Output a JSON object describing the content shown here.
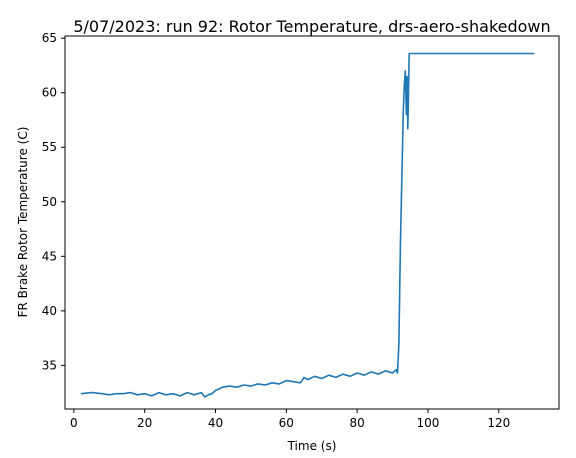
{
  "chart_data": {
    "type": "line",
    "title": "5/07/2023: run 92: Rotor Temperature, drs-aero-shakedown",
    "xlabel": "Time (s)",
    "ylabel": "FR Brake Rotor Temperature (C)",
    "xlim": [
      -2.5,
      137
    ],
    "ylim": [
      31,
      65.2
    ],
    "xticks": [
      "0",
      "20",
      "40",
      "60",
      "80",
      "100",
      "120"
    ],
    "yticks": [
      "35",
      "40",
      "45",
      "50",
      "55",
      "60",
      "65"
    ],
    "grid": false,
    "legend": "none",
    "line_color": "#1f77b4",
    "series": [
      {
        "x": [
          2,
          5,
          8,
          10,
          12,
          14,
          16,
          18,
          20,
          22,
          24,
          26,
          28,
          30,
          32,
          34,
          36,
          37,
          38,
          39,
          40,
          42,
          44,
          46,
          48,
          50,
          52,
          54,
          56,
          58,
          60,
          62,
          64,
          65,
          66,
          68,
          70,
          72,
          74,
          76,
          78,
          80,
          82,
          84,
          86,
          88,
          90,
          91,
          91.4,
          91.8,
          92.2,
          92.6,
          93,
          93.3,
          93.6,
          93.9,
          94.1,
          94.3,
          94.5,
          94.7,
          95,
          100,
          110,
          120,
          130
        ],
        "y": [
          32.4,
          32.5,
          32.4,
          32.3,
          32.4,
          32.4,
          32.5,
          32.3,
          32.4,
          32.2,
          32.5,
          32.3,
          32.4,
          32.2,
          32.5,
          32.3,
          32.5,
          32.1,
          32.3,
          32.4,
          32.7,
          33.0,
          33.1,
          33.0,
          33.2,
          33.1,
          33.3,
          33.2,
          33.4,
          33.3,
          33.6,
          33.5,
          33.4,
          33.9,
          33.7,
          34.0,
          33.8,
          34.1,
          33.9,
          34.2,
          34.0,
          34.3,
          34.1,
          34.4,
          34.2,
          34.5,
          34.3,
          34.6,
          34.3,
          37.0,
          46.0,
          52.0,
          58.0,
          60.5,
          62.0,
          58.0,
          61.5,
          56.7,
          60.0,
          63.6,
          63.6,
          63.6,
          63.6,
          63.6,
          63.6
        ]
      }
    ]
  }
}
